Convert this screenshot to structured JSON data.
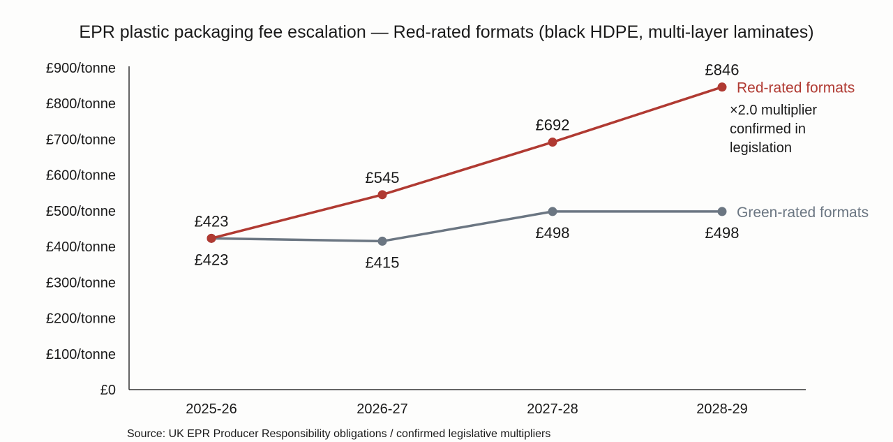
{
  "chart_data": {
    "type": "line",
    "title": "EPR plastic packaging fee escalation — Red-rated formats (black HDPE, multi-layer laminates)",
    "categories": [
      "2025-26",
      "2026-27",
      "2027-28",
      "2028-29"
    ],
    "ylim": [
      0,
      900
    ],
    "yticks": [
      0,
      100,
      200,
      300,
      400,
      500,
      600,
      700,
      800,
      900
    ],
    "ytick_labels": [
      "£0",
      "£100/tonne",
      "£200/tonne",
      "£300/tonne",
      "£400/tonne",
      "£500/tonne",
      "£600/tonne",
      "£700/tonne",
      "£800/tonne",
      "£900/tonne"
    ],
    "grid": false,
    "series": [
      {
        "name": "Red-rated formats",
        "color": "#b03a32",
        "values": [
          423,
          545,
          692,
          846
        ],
        "labels": [
          "£423",
          "£545",
          "£692",
          "£846"
        ],
        "label_position": "above"
      },
      {
        "name": "Green-rated formats",
        "color": "#6b7682",
        "values": [
          423,
          415,
          498,
          498
        ],
        "labels": [
          "£423",
          "£415",
          "£498",
          "£498"
        ],
        "label_position": "below"
      }
    ],
    "annotation": [
      "×2.0 multiplier",
      "confirmed in",
      "legislation"
    ],
    "source": "Source: UK EPR Producer Responsibility obligations / confirmed legislative multipliers",
    "legend_placement": "right, at line ends"
  }
}
